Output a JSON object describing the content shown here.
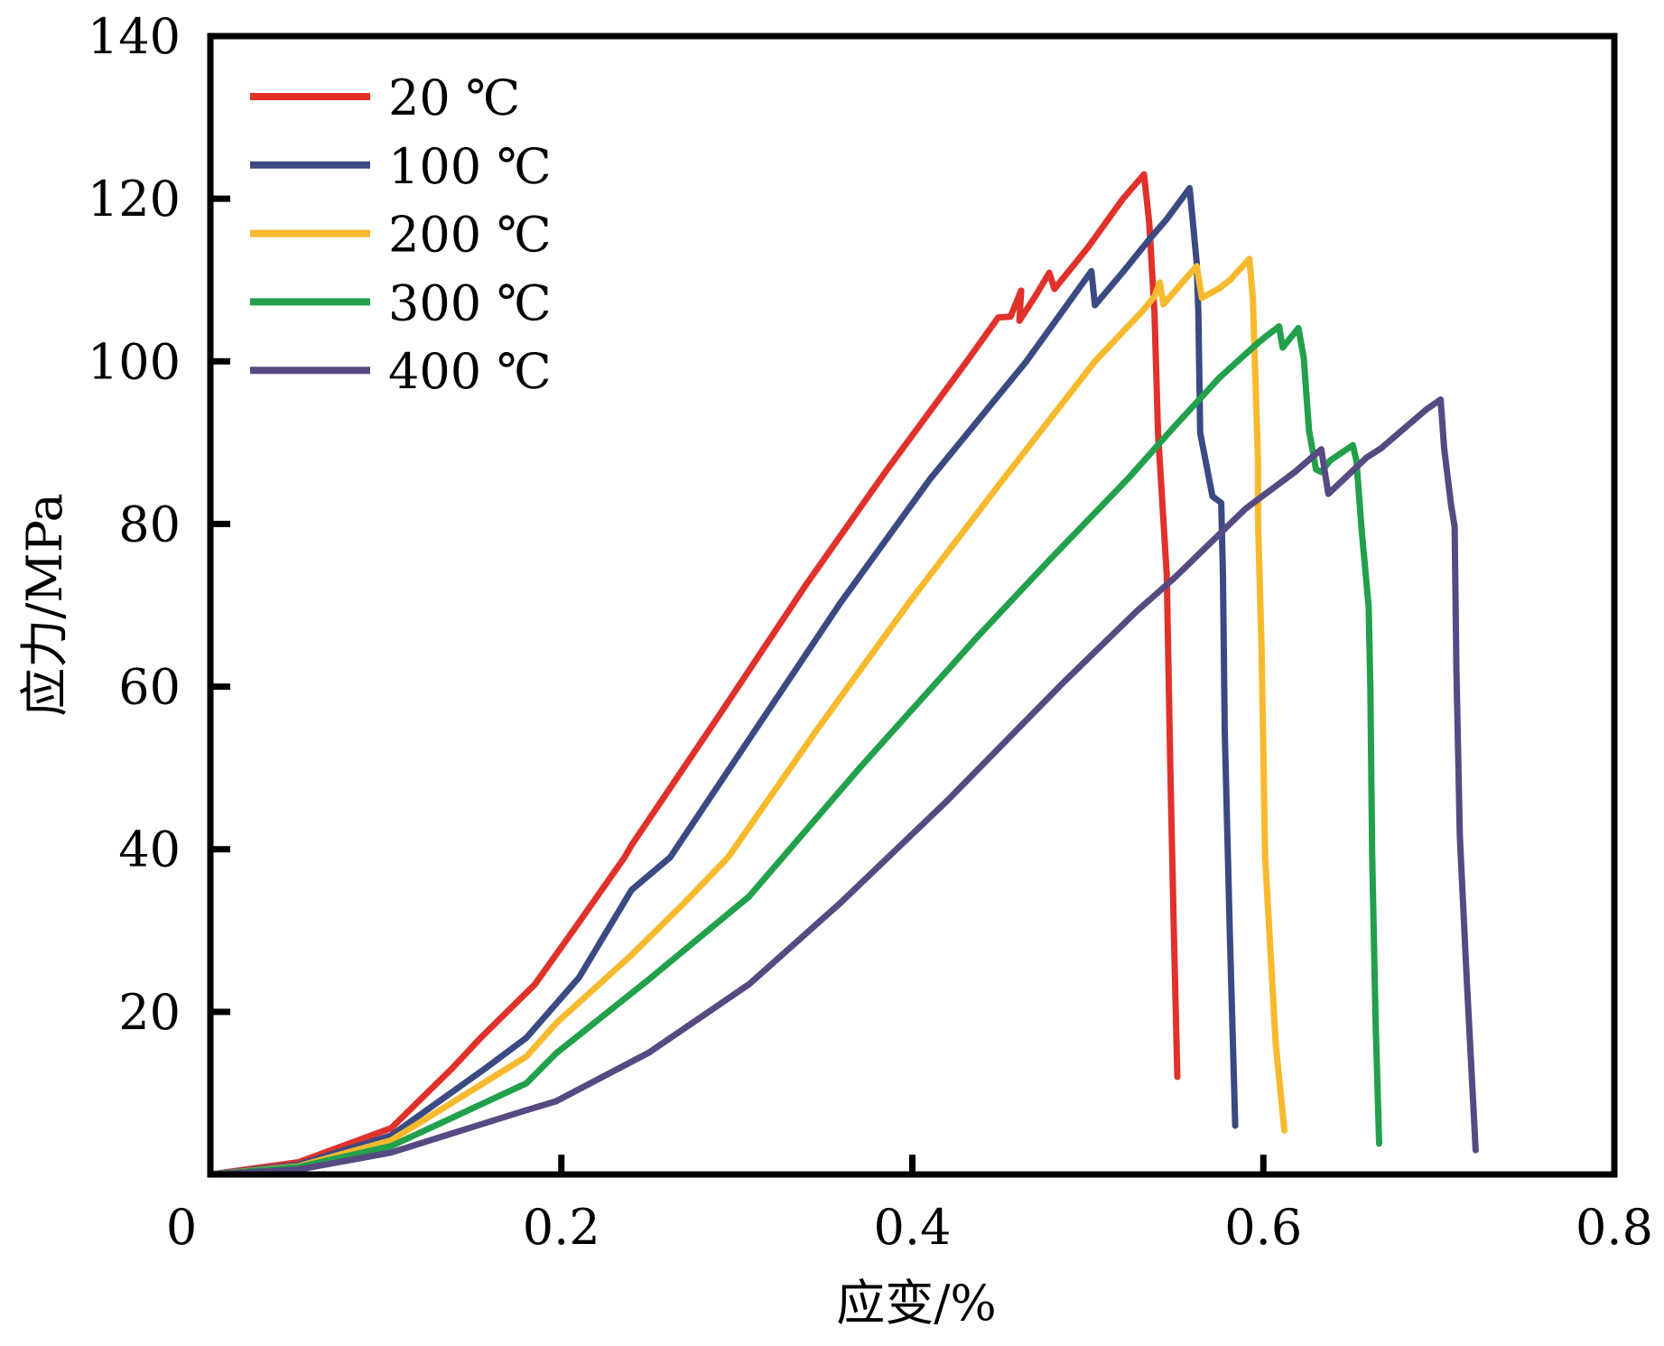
{
  "chart_data": {
    "type": "line",
    "title": "",
    "xlabel": "应变/%",
    "ylabel": "应力/MPa",
    "xlim": [
      0,
      0.8
    ],
    "ylim": [
      0,
      140
    ],
    "xticks": [
      0,
      0.2,
      0.4,
      0.6,
      0.8
    ],
    "xtick_labels": [
      "0",
      "0.2",
      "0.4",
      "0.6",
      "0.8"
    ],
    "yticks": [
      20,
      40,
      60,
      80,
      100,
      120,
      140
    ],
    "ytick_labels": [
      "20",
      "40",
      "60",
      "80",
      "100",
      "120",
      "140"
    ],
    "grid": false,
    "legend_position": "top-left",
    "series": [
      {
        "name": "20 ℃",
        "color": "#E0312B",
        "points": [
          [
            0,
            0
          ],
          [
            0.05,
            1.5
          ],
          [
            0.103,
            5.7
          ],
          [
            0.138,
            13.1
          ],
          [
            0.154,
            16.8
          ],
          [
            0.185,
            23.4
          ],
          [
            0.21,
            31
          ],
          [
            0.236,
            39.0
          ],
          [
            0.24,
            40.5
          ],
          [
            0.29,
            56.5
          ],
          [
            0.339,
            72.4
          ],
          [
            0.385,
            86.5
          ],
          [
            0.431,
            100.0
          ],
          [
            0.449,
            105.4
          ],
          [
            0.456,
            105.5
          ],
          [
            0.462,
            108.7
          ],
          [
            0.461,
            105.0
          ],
          [
            0.47,
            108
          ],
          [
            0.478,
            110.9
          ],
          [
            0.481,
            108.9
          ],
          [
            0.5,
            114
          ],
          [
            0.52,
            120
          ],
          [
            0.532,
            123.0
          ],
          [
            0.535,
            117.0
          ],
          [
            0.538,
            105.9
          ],
          [
            0.54,
            91.2
          ],
          [
            0.545,
            73.7
          ],
          [
            0.547,
            50
          ],
          [
            0.549,
            30
          ],
          [
            0.551,
            12.0
          ]
        ]
      },
      {
        "name": "100 ℃",
        "color": "#3B4A82",
        "points": [
          [
            0,
            0
          ],
          [
            0.05,
            1.2
          ],
          [
            0.103,
            4.8
          ],
          [
            0.157,
            13.1
          ],
          [
            0.18,
            16.8
          ],
          [
            0.21,
            24.2
          ],
          [
            0.24,
            35.0
          ],
          [
            0.262,
            39.0
          ],
          [
            0.31,
            54.5
          ],
          [
            0.359,
            70.3
          ],
          [
            0.41,
            85.5
          ],
          [
            0.465,
            100.0
          ],
          [
            0.502,
            111.1
          ],
          [
            0.504,
            106.9
          ],
          [
            0.52,
            111
          ],
          [
            0.535,
            115
          ],
          [
            0.545,
            117.5
          ],
          [
            0.558,
            121.3
          ],
          [
            0.562,
            112.2
          ],
          [
            0.563,
            105.9
          ],
          [
            0.564,
            91.2
          ],
          [
            0.571,
            83.4
          ],
          [
            0.576,
            82.6
          ],
          [
            0.577,
            73.7
          ],
          [
            0.578,
            54.5
          ],
          [
            0.581,
            28.9
          ],
          [
            0.583,
            13.5
          ],
          [
            0.584,
            6.0
          ]
        ]
      },
      {
        "name": "200 ℃",
        "color": "#F7BA2E",
        "points": [
          [
            0,
            0
          ],
          [
            0.05,
            1.0
          ],
          [
            0.103,
            4.2
          ],
          [
            0.18,
            14.5
          ],
          [
            0.197,
            18.6
          ],
          [
            0.24,
            27
          ],
          [
            0.27,
            33.4
          ],
          [
            0.295,
            39.0
          ],
          [
            0.345,
            54.5
          ],
          [
            0.398,
            70.3
          ],
          [
            0.45,
            85
          ],
          [
            0.504,
            100.0
          ],
          [
            0.532,
            106.4
          ],
          [
            0.538,
            108
          ],
          [
            0.541,
            109.7
          ],
          [
            0.543,
            107.0
          ],
          [
            0.555,
            110
          ],
          [
            0.562,
            111.7
          ],
          [
            0.565,
            107.8
          ],
          [
            0.575,
            109
          ],
          [
            0.581,
            110.0
          ],
          [
            0.592,
            112.6
          ],
          [
            0.594,
            107.8
          ],
          [
            0.597,
            87.5
          ],
          [
            0.597,
            80.0
          ],
          [
            0.599,
            64.7
          ],
          [
            0.601,
            39.1
          ],
          [
            0.607,
            16.1
          ],
          [
            0.612,
            5.4
          ]
        ]
      },
      {
        "name": "300 ℃",
        "color": "#22A04B",
        "points": [
          [
            0,
            0
          ],
          [
            0.05,
            0.9
          ],
          [
            0.103,
            3.5
          ],
          [
            0.18,
            11.2
          ],
          [
            0.197,
            14.9
          ],
          [
            0.25,
            24
          ],
          [
            0.307,
            34.2
          ],
          [
            0.37,
            50
          ],
          [
            0.437,
            66.1
          ],
          [
            0.48,
            76
          ],
          [
            0.523,
            85.6
          ],
          [
            0.549,
            91.9
          ],
          [
            0.575,
            98
          ],
          [
            0.595,
            101.9
          ],
          [
            0.601,
            103.0
          ],
          [
            0.609,
            104.3
          ],
          [
            0.611,
            101.7
          ],
          [
            0.62,
            104.1
          ],
          [
            0.623,
            100.4
          ],
          [
            0.626,
            91.5
          ],
          [
            0.63,
            86.7
          ],
          [
            0.633,
            86.4
          ],
          [
            0.638,
            87.8
          ],
          [
            0.651,
            89.7
          ],
          [
            0.653,
            87.8
          ],
          [
            0.656,
            79.3
          ],
          [
            0.66,
            69.8
          ],
          [
            0.661,
            59.6
          ],
          [
            0.662,
            39.1
          ],
          [
            0.664,
            18.7
          ],
          [
            0.666,
            3.8
          ]
        ]
      },
      {
        "name": "400 ℃",
        "color": "#574A82",
        "points": [
          [
            0,
            0
          ],
          [
            0.05,
            0.6
          ],
          [
            0.103,
            2.7
          ],
          [
            0.18,
            7.9
          ],
          [
            0.197,
            9.0
          ],
          [
            0.25,
            15
          ],
          [
            0.307,
            23.4
          ],
          [
            0.359,
            33.4
          ],
          [
            0.42,
            46
          ],
          [
            0.486,
            60.5
          ],
          [
            0.528,
            69.3
          ],
          [
            0.549,
            73.3
          ],
          [
            0.59,
            81.9
          ],
          [
            0.618,
            86.4
          ],
          [
            0.633,
            89.2
          ],
          [
            0.637,
            83.7
          ],
          [
            0.659,
            88.2
          ],
          [
            0.667,
            89.3
          ],
          [
            0.693,
            94.1
          ],
          [
            0.701,
            95.3
          ],
          [
            0.703,
            89.3
          ],
          [
            0.707,
            82.3
          ],
          [
            0.709,
            79.7
          ],
          [
            0.71,
            62.0
          ],
          [
            0.712,
            41.5
          ],
          [
            0.716,
            23.6
          ],
          [
            0.721,
            3.0
          ]
        ]
      }
    ]
  }
}
